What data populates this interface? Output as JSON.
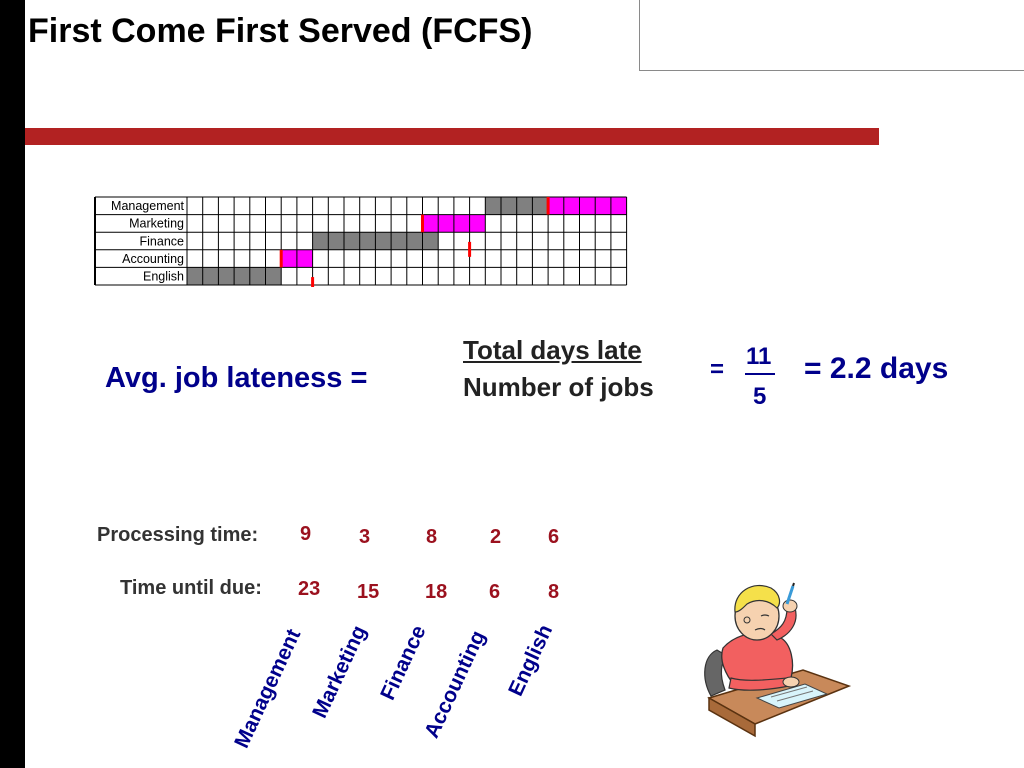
{
  "slide": {
    "title": "First Come First Served (FCFS)"
  },
  "gantt": {
    "rows": [
      "Management",
      "Marketing",
      "Finance",
      "Accounting",
      "English"
    ],
    "columns": 28,
    "colors": {
      "processing": "#808080",
      "late": "#ff00ff",
      "due_marker": "#ff0000"
    },
    "bars": [
      {
        "row": "English",
        "processing": [
          0,
          6
        ],
        "late": null,
        "due": 8
      },
      {
        "row": "Accounting",
        "processing": [
          6,
          6
        ],
        "late": [
          6,
          8
        ],
        "due": 6
      },
      {
        "row": "Finance",
        "processing": [
          8,
          16
        ],
        "late": null,
        "due": 18
      },
      {
        "row": "Marketing",
        "processing": [
          16,
          16
        ],
        "late": [
          15,
          19
        ],
        "due": 15
      },
      {
        "row": "Management",
        "processing": [
          19,
          23
        ],
        "late": [
          23,
          28
        ],
        "due": 23
      }
    ]
  },
  "formula": {
    "lhs": "Avg. job lateness =",
    "numerator": "Total days late",
    "denominator": "Number of jobs",
    "equals": "=",
    "value_numerator": "11",
    "value_denominator": "5",
    "result": "= 2.2 days"
  },
  "table": {
    "processing_label": "Processing time:",
    "due_label": "Time until due:",
    "jobs": [
      {
        "name": "Management",
        "processing": "9",
        "due": "23"
      },
      {
        "name": "Marketing",
        "processing": "3",
        "due": "15"
      },
      {
        "name": "Finance",
        "processing": "8",
        "due": "18"
      },
      {
        "name": "Accounting",
        "processing": "2",
        "due": "6"
      },
      {
        "name": "English",
        "processing": "6",
        "due": "8"
      }
    ]
  },
  "clipart": {
    "icon": "student-thinking-at-desk-icon"
  }
}
